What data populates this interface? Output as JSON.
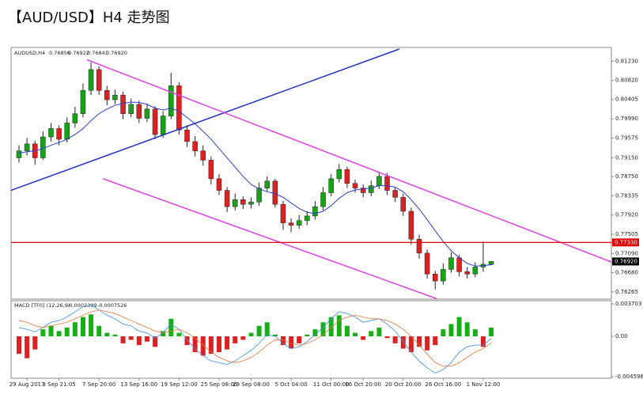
{
  "chart_data": [
    {
      "type": "candlestick",
      "title": "【AUD/USD】H4 走势图",
      "symbol": "AUDUSD,H4",
      "header_values": [
        "0.76856",
        "0.76922",
        "0.76841",
        "0.76920"
      ],
      "categories": [
        null,
        "29 Aug 2017",
        null,
        null,
        null,
        "3 Sep 21:05",
        null,
        null,
        null,
        null,
        "7 Sep 20:00",
        null,
        null,
        null,
        null,
        "13 Sep 16:00",
        null,
        null,
        null,
        null,
        "19 Sep 12:00",
        null,
        null,
        null,
        null,
        "25 Sep 08:00",
        null,
        null,
        null,
        "29 Sep 08:00",
        null,
        null,
        null,
        null,
        "5 Oct 04:00",
        null,
        null,
        null,
        null,
        "11 Oct 00:00",
        null,
        null,
        null,
        "16 Oct 20:00",
        null,
        null,
        null,
        null,
        "20 Oct 20:00",
        null,
        null,
        null,
        null,
        "26 Oct 16:00",
        null,
        null,
        null,
        null,
        "1 Nov 12:00",
        null
      ],
      "ohlc": [
        [
          0.7915,
          0.7942,
          0.7905,
          0.793
        ],
        [
          0.793,
          0.7958,
          0.792,
          0.7945
        ],
        [
          0.7945,
          0.7952,
          0.79,
          0.7915
        ],
        [
          0.7915,
          0.7972,
          0.791,
          0.796
        ],
        [
          0.796,
          0.799,
          0.795,
          0.7978
        ],
        [
          0.7978,
          0.7985,
          0.7942,
          0.7955
        ],
        [
          0.7955,
          0.8002,
          0.7948,
          0.799
        ],
        [
          0.799,
          0.8025,
          0.798,
          0.801
        ],
        [
          0.801,
          0.8075,
          0.8002,
          0.806
        ],
        [
          0.806,
          0.812,
          0.805,
          0.8105
        ],
        [
          0.8105,
          0.8112,
          0.805,
          0.806
        ],
        [
          0.806,
          0.807,
          0.8028,
          0.804
        ],
        [
          0.804,
          0.8062,
          0.803,
          0.805
        ],
        [
          0.805,
          0.8058,
          0.7998,
          0.801
        ],
        [
          0.801,
          0.8042,
          0.8002,
          0.803
        ],
        [
          0.803,
          0.8038,
          0.799,
          0.8
        ],
        [
          0.8,
          0.8032,
          0.7992,
          0.802
        ],
        [
          0.802,
          0.8026,
          0.7955,
          0.7965
        ],
        [
          0.7965,
          0.8015,
          0.7958,
          0.8005
        ],
        [
          0.8005,
          0.8098,
          0.7998,
          0.807
        ],
        [
          0.807,
          0.8078,
          0.7965,
          0.7975
        ],
        [
          0.7975,
          0.7985,
          0.7938,
          0.795
        ],
        [
          0.795,
          0.7962,
          0.7918,
          0.793
        ],
        [
          0.793,
          0.7942,
          0.7898,
          0.791
        ],
        [
          0.791,
          0.7918,
          0.7858,
          0.787
        ],
        [
          0.787,
          0.788,
          0.7835,
          0.7845
        ],
        [
          0.7845,
          0.7852,
          0.7798,
          0.781
        ],
        [
          0.781,
          0.7838,
          0.7802,
          0.7825
        ],
        [
          0.7825,
          0.7832,
          0.7805,
          0.7815
        ],
        [
          0.7815,
          0.783,
          0.7806,
          0.782
        ],
        [
          0.782,
          0.7862,
          0.7812,
          0.785
        ],
        [
          0.785,
          0.7875,
          0.7842,
          0.7865
        ],
        [
          0.7865,
          0.787,
          0.7808,
          0.7815
        ],
        [
          0.7815,
          0.7822,
          0.776,
          0.7775
        ],
        [
          0.7775,
          0.7785,
          0.7755,
          0.777
        ],
        [
          0.777,
          0.7792,
          0.7762,
          0.778
        ],
        [
          0.778,
          0.78,
          0.777,
          0.779
        ],
        [
          0.779,
          0.7822,
          0.7782,
          0.781
        ],
        [
          0.781,
          0.7852,
          0.7802,
          0.784
        ],
        [
          0.784,
          0.788,
          0.7832,
          0.787
        ],
        [
          0.787,
          0.7902,
          0.7862,
          0.789
        ],
        [
          0.789,
          0.7896,
          0.785,
          0.786
        ],
        [
          0.786,
          0.7868,
          0.784,
          0.785
        ],
        [
          0.785,
          0.7858,
          0.783,
          0.784
        ],
        [
          0.784,
          0.7866,
          0.7832,
          0.7855
        ],
        [
          0.7855,
          0.7885,
          0.7848,
          0.7875
        ],
        [
          0.7875,
          0.7882,
          0.7835,
          0.7845
        ],
        [
          0.7845,
          0.7852,
          0.782,
          0.783
        ],
        [
          0.783,
          0.7838,
          0.779,
          0.78
        ],
        [
          0.78,
          0.7808,
          0.7728,
          0.774
        ],
        [
          0.774,
          0.775,
          0.7698,
          0.771
        ],
        [
          0.771,
          0.7718,
          0.7655,
          0.7665
        ],
        [
          0.7665,
          0.7672,
          0.7632,
          0.765
        ],
        [
          0.765,
          0.7688,
          0.7642,
          0.7675
        ],
        [
          0.7675,
          0.7712,
          0.7668,
          0.77
        ],
        [
          0.77,
          0.7706,
          0.766,
          0.767
        ],
        [
          0.767,
          0.768,
          0.7655,
          0.7665
        ],
        [
          0.7665,
          0.769,
          0.7658,
          0.768
        ],
        [
          0.768,
          0.7735,
          0.767,
          0.7686
        ],
        [
          0.76856,
          0.76922,
          0.76841,
          0.7692
        ]
      ],
      "up_color": "#16a316",
      "down_color": "#e02020",
      "ma": {
        "color": "#2a3fd0",
        "values": [
          0.7925,
          0.7928,
          0.793,
          0.7935,
          0.7942,
          0.7948,
          0.7955,
          0.7965,
          0.7978,
          0.7995,
          0.801,
          0.802,
          0.8028,
          0.8032,
          0.8035,
          0.8034,
          0.803,
          0.8022,
          0.8018,
          0.8022,
          0.8015,
          0.8002,
          0.7988,
          0.7972,
          0.7955,
          0.7935,
          0.7915,
          0.7895,
          0.7875,
          0.7858,
          0.7848,
          0.7842,
          0.7838,
          0.783,
          0.7818,
          0.7806,
          0.7798,
          0.7795,
          0.78,
          0.7812,
          0.7828,
          0.784,
          0.7846,
          0.7848,
          0.785,
          0.7855,
          0.7855,
          0.7852,
          0.7842,
          0.7825,
          0.7805,
          0.7782,
          0.7758,
          0.7735,
          0.7715,
          0.77,
          0.7688,
          0.7682,
          0.7683,
          0.7685
        ]
      },
      "trendlines": [
        {
          "color": "#1f2fc8",
          "x": [
            -1,
            47.5
          ],
          "y": [
            0.7845,
            0.8149
          ]
        },
        {
          "color": "#e040e0",
          "x": [
            8.5,
            74
          ],
          "y": [
            0.8126,
            0.7691
          ]
        },
        {
          "color": "#e040e0",
          "x": [
            10.5,
            52.2
          ],
          "y": [
            0.787,
            0.7612
          ]
        }
      ],
      "hlines": [
        {
          "value": 0.7733,
          "label": "0.77330",
          "color": "#e00000"
        }
      ],
      "last_price": {
        "value": 0.7692,
        "label": "0.76920"
      },
      "ylim": [
        0.7611,
        0.8149
      ],
      "yticks": [
        {
          "value": 0.8123,
          "label": "0.81230"
        },
        {
          "value": 0.8082,
          "label": "0.80820"
        },
        {
          "value": 0.80405,
          "label": "0.80405"
        },
        {
          "value": 0.7999,
          "label": "0.79990"
        },
        {
          "value": 0.79575,
          "label": "0.79575"
        },
        {
          "value": 0.7915,
          "label": "0.79150"
        },
        {
          "value": 0.7875,
          "label": "0.78750"
        },
        {
          "value": 0.78335,
          "label": "0.78335"
        },
        {
          "value": 0.7792,
          "label": "0.77920"
        },
        {
          "value": 0.77505,
          "label": "0.77505"
        },
        {
          "value": 0.7709,
          "label": "0.77090"
        },
        {
          "value": 0.7668,
          "label": "0.76680"
        },
        {
          "value": 0.76265,
          "label": "0.76265"
        }
      ]
    },
    {
      "type": "macd",
      "title": "MACD [TF0] (12,26,9)",
      "last_values": [
        -0.0002399,
        -0.0007526
      ],
      "up_color": "#16b016",
      "down_color": "#e02020",
      "values": [
        -0.002,
        -0.0025,
        -0.0015,
        0.0008,
        0.0012,
        0.0006,
        0.001,
        0.0016,
        0.0022,
        0.0025,
        0.0012,
        0.0004,
        0.0002,
        -0.0008,
        -0.0004,
        -0.001,
        -0.0006,
        -0.0012,
        0.0006,
        0.002,
        0.0004,
        -0.001,
        -0.0018,
        -0.0022,
        -0.002,
        -0.0018,
        -0.0015,
        -0.0008,
        -0.0004,
        0.0004,
        0.0012,
        0.0016,
        0.0002,
        -0.001,
        -0.0014,
        -0.0008,
        0.0002,
        0.0008,
        0.0016,
        0.0022,
        0.0024,
        0.0012,
        0.0004,
        -0.0004,
        0.0006,
        0.001,
        -0.0002,
        -0.0008,
        -0.0014,
        -0.0018,
        -0.0012,
        -0.0016,
        -0.001,
        0.0008,
        0.0014,
        0.0022,
        0.0016,
        0.0008,
        -0.0012,
        0.001
      ],
      "series": [
        {
          "color": "#3a8ee8",
          "values": [
            0.001,
            0.0008,
            0.0005,
            0.001,
            0.0016,
            0.0018,
            0.0022,
            0.0028,
            0.0034,
            0.0036,
            0.003,
            0.0024,
            0.002,
            0.0014,
            0.0012,
            0.0006,
            0.0004,
            -0.0002,
            0.0004,
            0.0014,
            0.0008,
            -0.0004,
            -0.0014,
            -0.0022,
            -0.0028,
            -0.003,
            -0.0032,
            -0.0028,
            -0.0022,
            -0.0016,
            -0.0008,
            0.0002,
            0.0,
            -0.0008,
            -0.0014,
            -0.0012,
            -0.0006,
            0.0002,
            0.001,
            0.002,
            0.0028,
            0.0026,
            0.0022,
            0.0016,
            0.0018,
            0.002,
            0.0014,
            0.0006,
            -0.0006,
            -0.0018,
            -0.0028,
            -0.0036,
            -0.0042,
            -0.0038,
            -0.003,
            -0.0018,
            -0.0012,
            -0.001,
            -0.001,
            -0.0002399
          ]
        },
        {
          "color": "#e8763a",
          "values": [
            0.0018,
            0.0016,
            0.0012,
            0.001,
            0.0012,
            0.0014,
            0.0016,
            0.002,
            0.0024,
            0.0028,
            0.003,
            0.0028,
            0.0026,
            0.0022,
            0.0018,
            0.0014,
            0.001,
            0.0006,
            0.0004,
            0.0006,
            0.0008,
            0.0004,
            -0.0002,
            -0.001,
            -0.0018,
            -0.0024,
            -0.0028,
            -0.003,
            -0.0028,
            -0.0024,
            -0.0018,
            -0.001,
            -0.0004,
            -0.0004,
            -0.0008,
            -0.001,
            -0.0008,
            -0.0004,
            0.0002,
            0.001,
            0.0018,
            0.0022,
            0.0024,
            0.0022,
            0.002,
            0.002,
            0.0018,
            0.0014,
            0.0008,
            0.0,
            -0.001,
            -0.002,
            -0.003,
            -0.0034,
            -0.0034,
            -0.003,
            -0.0024,
            -0.0018,
            -0.0014,
            -0.0007526
          ]
        }
      ],
      "ylim": [
        -0.00478,
        0.00406
      ],
      "yticks": [
        0.003703,
        {
          "value": 0,
          "label": "0.00"
        },
        -0.004596
      ]
    }
  ]
}
